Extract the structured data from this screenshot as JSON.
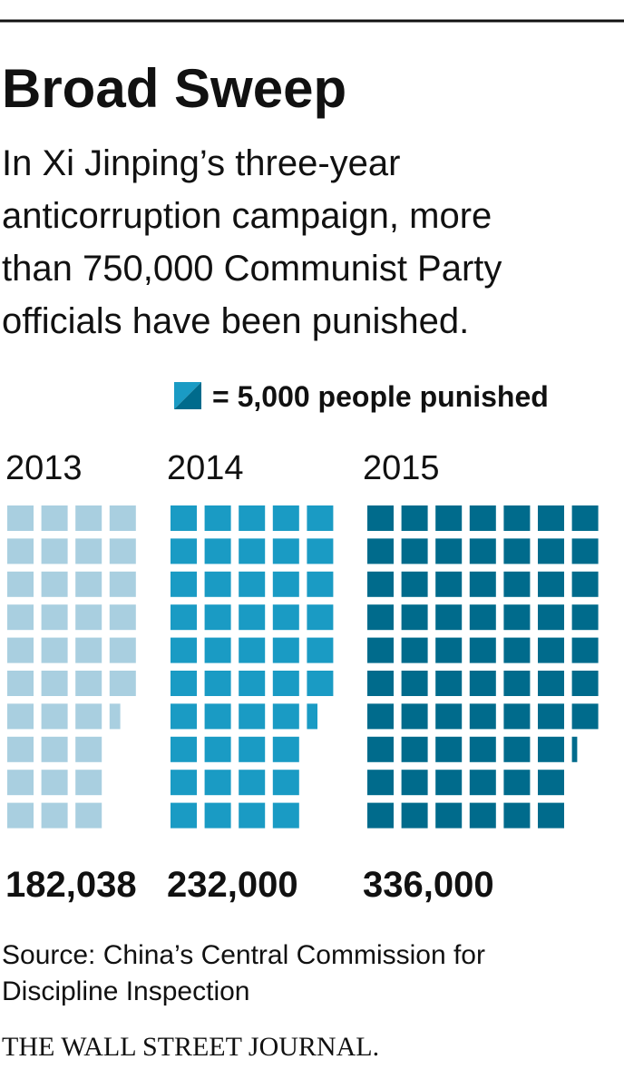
{
  "chart_data": {
    "type": "pictogram",
    "title": "Broad Sweep",
    "subtitle_lines": [
      "In Xi Jinping’s three-year",
      "anticorruption campaign, more",
      "than 750,000 Communist Party",
      "officials have been punished."
    ],
    "legend": {
      "label": "= 5,000 people punished",
      "unit": 5000
    },
    "categories": [
      "2013",
      "2014",
      "2015"
    ],
    "values": [
      182038,
      232000,
      336000
    ],
    "value_labels": [
      "182,038",
      "232,000",
      "336,000"
    ],
    "colors": [
      "#a9cfe0",
      "#1a9bc4",
      "#006b8c"
    ],
    "source_lines": [
      "Source: China’s Central Commission for",
      "Discipline Inspection"
    ],
    "footer": "THE WALL STREET JOURNAL."
  }
}
